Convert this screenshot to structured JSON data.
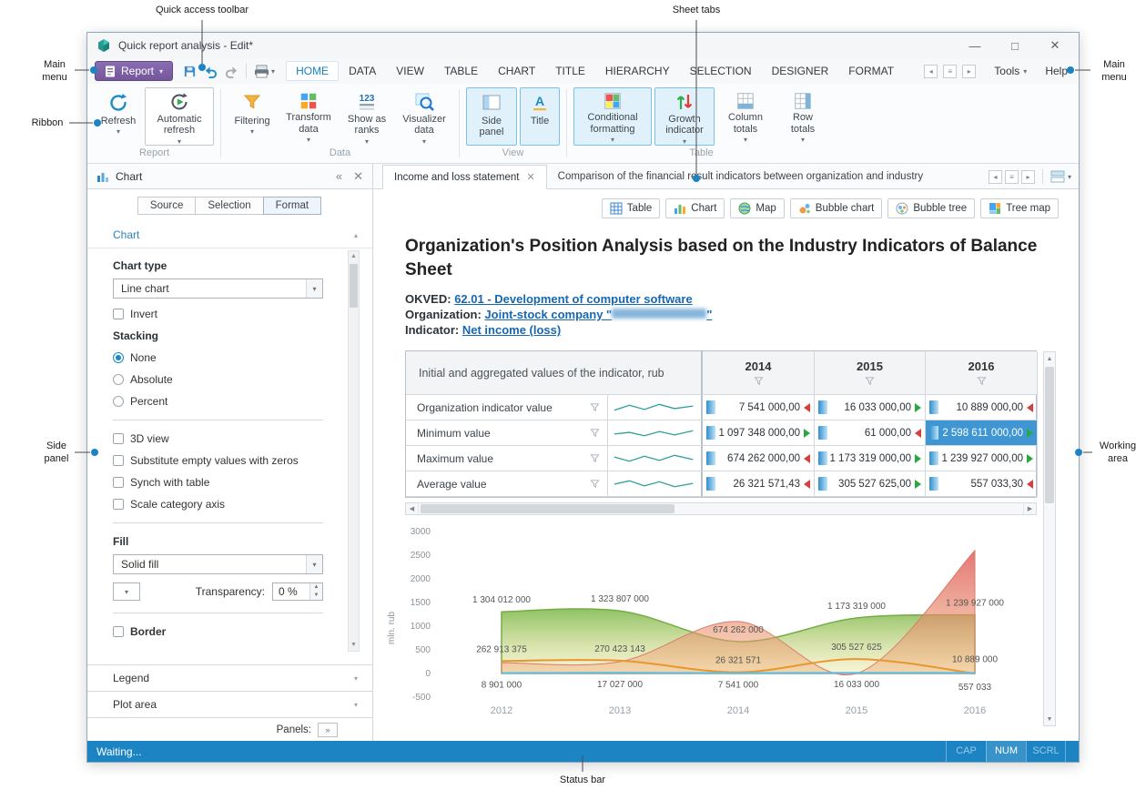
{
  "annotations": {
    "quick_access_toolbar": "Quick access toolbar",
    "sheet_tabs": "Sheet tabs",
    "main_menu_left": "Main menu",
    "main_menu_right": "Main menu",
    "ribbon": "Ribbon",
    "side_panel": "Side panel",
    "working_area": "Working area",
    "status_bar": "Status bar"
  },
  "window": {
    "title": "Quick report analysis - Edit*"
  },
  "menu": {
    "report_button": "Report",
    "tabs": [
      {
        "label": "HOME",
        "active": true
      },
      {
        "label": "DATA"
      },
      {
        "label": "VIEW"
      },
      {
        "label": "TABLE"
      },
      {
        "label": "CHART"
      },
      {
        "label": "TITLE"
      },
      {
        "label": "HIERARCHY"
      },
      {
        "label": "SELECTION"
      },
      {
        "label": "DESIGNER"
      },
      {
        "label": "FORMAT"
      }
    ],
    "tools_label": "Tools",
    "help_label": "Help"
  },
  "ribbon": {
    "groups": [
      {
        "label": "Report"
      },
      {
        "label": "Data"
      },
      {
        "label": "View"
      },
      {
        "label": "Table"
      }
    ],
    "buttons": {
      "refresh": "Refresh",
      "automatic_refresh": "Automatic refresh",
      "filtering": "Filtering",
      "transform_data": "Transform data",
      "show_as_ranks": "Show as ranks",
      "visualizer_data": "Visualizer data",
      "side_panel": "Side panel",
      "title": "Title",
      "conditional_formatting": "Conditional formatting",
      "growth_indicator": "Growth indicator",
      "column_totals": "Column totals",
      "row_totals": "Row totals"
    }
  },
  "side_panel": {
    "header": "Chart",
    "tabs": [
      "Source",
      "Selection",
      "Format"
    ],
    "section_chart": "Chart",
    "chart_type_label": "Chart type",
    "chart_type_value": "Line chart",
    "invert_label": "Invert",
    "stacking_label": "Stacking",
    "stacking_options": [
      "None",
      "Absolute",
      "Percent"
    ],
    "stacking_selected": "None",
    "view_3d_label": "3D view",
    "substitute_label": "Substitute empty values with zeros",
    "synch_label": "Synch with table",
    "scale_label": "Scale category axis",
    "fill_label": "Fill",
    "fill_value": "Solid fill",
    "transparency_label": "Transparency:",
    "transparency_value": "0 %",
    "border_label": "Border",
    "section_legend": "Legend",
    "section_plot_area": "Plot area",
    "panels_label": "Panels:"
  },
  "sheet_tabs": [
    {
      "label": "Income and loss statement",
      "active": true
    },
    {
      "label": "Comparison of the financial result indicators between organization and industry"
    }
  ],
  "visualizer_buttons": [
    "Table",
    "Chart",
    "Map",
    "Bubble chart",
    "Bubble tree",
    "Tree map"
  ],
  "report": {
    "title": "Organization's Position Analysis based on the Industry Indicators of Balance Sheet",
    "okved_label": "OKVED:",
    "okved_link": "62.01 - Development of computer software",
    "organization_label": "Organization:",
    "organization_link_prefix": "Joint-stock company \"",
    "organization_link_suffix": "\"",
    "indicator_label": "Indicator:",
    "indicator_link": "Net income (loss)"
  },
  "table": {
    "corner_header": "Initial and aggregated values of the indicator, rub",
    "years": [
      "2014",
      "2015",
      "2016"
    ],
    "rows": [
      {
        "label": "Organization indicator value",
        "values": [
          {
            "text": "7 541 000,00",
            "dir": "down"
          },
          {
            "text": "16 033 000,00",
            "dir": "up"
          },
          {
            "text": "10 889 000,00",
            "dir": "down"
          }
        ]
      },
      {
        "label": "Minimum value",
        "values": [
          {
            "text": "1 097 348 000,00",
            "dir": "up"
          },
          {
            "text": "61 000,00",
            "dir": "down"
          },
          {
            "text": "2 598 611 000,00",
            "dir": "up",
            "selected": "true"
          }
        ]
      },
      {
        "label": "Maximum value",
        "values": [
          {
            "text": "674 262 000,00",
            "dir": "down"
          },
          {
            "text": "1 173 319 000,00",
            "dir": "up"
          },
          {
            "text": "1 239 927 000,00",
            "dir": "up"
          }
        ]
      },
      {
        "label": "Average value",
        "values": [
          {
            "text": "26 321 571,43",
            "dir": "down"
          },
          {
            "text": "305 527 625,00",
            "dir": "up"
          },
          {
            "text": "557 033,30",
            "dir": "down"
          }
        ]
      }
    ]
  },
  "chart_data": {
    "type": "area",
    "x": [
      "2012",
      "2013",
      "2014",
      "2015",
      "2016"
    ],
    "ylabel": "mln. rub",
    "ylim": [
      -500,
      3000
    ],
    "yticks": [
      3000,
      2500,
      2000,
      1500,
      1000,
      500,
      0,
      -500
    ],
    "grid": false,
    "legend": false,
    "series": [
      {
        "name": "Maximum value",
        "kind": "area",
        "color": "#8bbf4e",
        "values": [
          1304012000,
          1323807000,
          674262000,
          1173319000,
          1239927000
        ],
        "labels": [
          "1 304 012 000",
          "1 323 807 000",
          "674 262 000",
          "1 173 319 000",
          "1 239 927 000"
        ]
      },
      {
        "name": "Minimum value",
        "kind": "area",
        "color": "#e07070",
        "values": [
          230000000,
          250000000,
          1097348000,
          61000,
          2598611000
        ],
        "labels": [
          "",
          "",
          "",
          "",
          ""
        ]
      },
      {
        "name": "Average value",
        "kind": "line",
        "color": "#e8962e",
        "values": [
          262913375,
          270423143,
          26321571,
          305527625,
          557033
        ],
        "labels": [
          "262 913 375",
          "270 423 143",
          "26 321 571",
          "305 527 625",
          "557 033"
        ]
      },
      {
        "name": "Organization indicator value",
        "kind": "line",
        "color": "#5fbde8",
        "values": [
          8901000,
          17027000,
          7541000,
          16033000,
          10889000
        ],
        "labels": [
          "8 901 000",
          "17 027 000",
          "7 541 000",
          "16 033 000",
          "10 889 000"
        ]
      }
    ]
  },
  "status_bar": {
    "status": "Waiting...",
    "cap": "CAP",
    "num": "NUM",
    "scrl": "SCRL"
  }
}
